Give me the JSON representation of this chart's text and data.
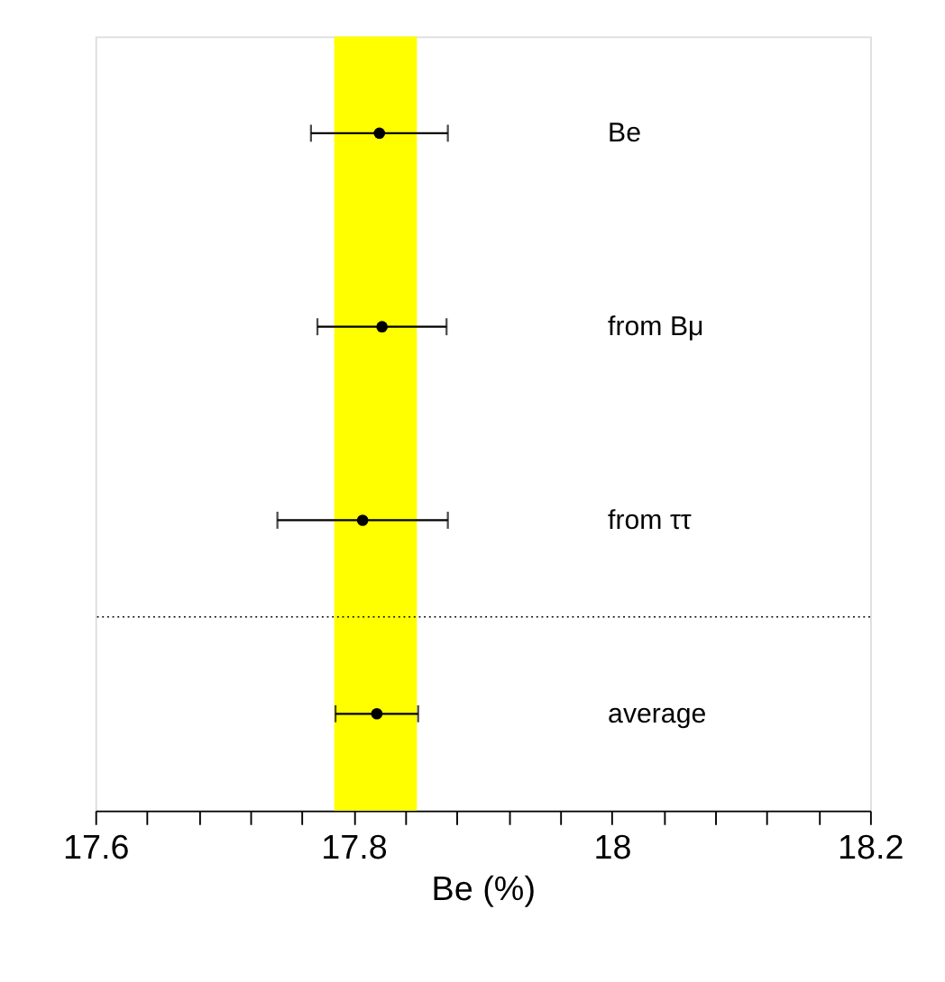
{
  "chart_data": {
    "type": "scatter",
    "orientation": "horizontal",
    "xlabel": "Be (%)",
    "categories": [
      "Be",
      "from Bμ",
      "from ττ",
      "average"
    ],
    "values": [
      17.82,
      17.822,
      17.807,
      17.818
    ],
    "errors": [
      0.053,
      0.05,
      0.066,
      0.032
    ],
    "color": "#000000",
    "marker": "circle",
    "xlim": [
      17.6,
      18.2
    ],
    "xticks": [
      17.6,
      {
        "value": 17.64,
        "label": null
      },
      {
        "value": 17.68,
        "label": null
      },
      {
        "value": 17.72,
        "label": null
      },
      {
        "value": 17.76,
        "label": null
      },
      17.8,
      {
        "value": 17.84,
        "label": null
      },
      {
        "value": 17.88,
        "label": null
      },
      {
        "value": 17.92,
        "label": null
      },
      {
        "value": 17.96,
        "label": null
      },
      18,
      {
        "value": 18.04,
        "label": null
      },
      {
        "value": 18.08,
        "label": null
      },
      {
        "value": 18.12,
        "label": null
      },
      {
        "value": 18.16,
        "label": null
      },
      18.2
    ],
    "bands": [
      {
        "axis": "x",
        "from": 17.785,
        "to": 17.849,
        "color": "#ffff00"
      }
    ],
    "grid": false
  }
}
